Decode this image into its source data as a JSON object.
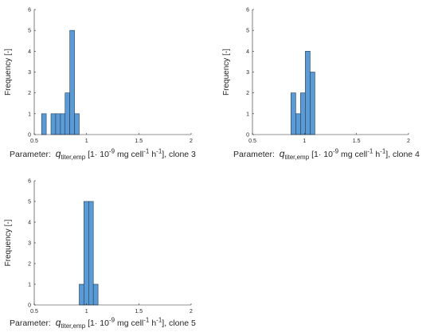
{
  "figure": {
    "bar_color": "#5b9bd5",
    "bar_edge": "#1f3b57",
    "axis_color": "#262626"
  },
  "chart_data": [
    {
      "type": "bar",
      "subtype": "histogram",
      "ylabel": "Frequency [-]",
      "xlabel": {
        "prefix": "Parameter:",
        "symbol": "q",
        "subscript": "titer,emp",
        "unit_open": "[1·",
        "unit_ten": "10",
        "unit_exp1": "-9",
        "unit_mid": "mg cell",
        "unit_exp2": "-1",
        "unit_h": "h",
        "unit_exp3": "-1",
        "suffix": "], clone 3"
      },
      "xlim": [
        0.5,
        2
      ],
      "ylim": [
        0,
        6
      ],
      "xticks": [
        "0.5",
        "1",
        "1.5",
        "2"
      ],
      "yticks": [
        "0",
        "1",
        "2",
        "3",
        "4",
        "5",
        "6"
      ],
      "bin_width": 0.045,
      "bins": [
        {
          "x": 0.57,
          "count": 1
        },
        {
          "x": 0.66,
          "count": 1
        },
        {
          "x": 0.705,
          "count": 1
        },
        {
          "x": 0.75,
          "count": 1
        },
        {
          "x": 0.795,
          "count": 2
        },
        {
          "x": 0.84,
          "count": 5
        },
        {
          "x": 0.885,
          "count": 1
        }
      ]
    },
    {
      "type": "bar",
      "subtype": "histogram",
      "ylabel": "Frequency [-]",
      "xlabel": {
        "prefix": "Parameter:",
        "symbol": "q",
        "subscript": "titer,emp",
        "unit_open": "[1·",
        "unit_ten": "10",
        "unit_exp1": "-9",
        "unit_mid": "mg cell",
        "unit_exp2": "-1",
        "unit_h": "h",
        "unit_exp3": "-1",
        "suffix": "], clone 4"
      },
      "xlim": [
        0.5,
        2
      ],
      "ylim": [
        0,
        6
      ],
      "xticks": [
        "0.5",
        "1",
        "1.5",
        "2"
      ],
      "yticks": [
        "0",
        "1",
        "2",
        "3",
        "4",
        "5",
        "6"
      ],
      "bin_width": 0.046,
      "bins": [
        {
          "x": 0.87,
          "count": 2
        },
        {
          "x": 0.916,
          "count": 1
        },
        {
          "x": 0.962,
          "count": 2
        },
        {
          "x": 1.008,
          "count": 4
        },
        {
          "x": 1.054,
          "count": 3
        }
      ]
    },
    {
      "type": "bar",
      "subtype": "histogram",
      "ylabel": "Frequency [-]",
      "xlabel": {
        "prefix": "Parameter:",
        "symbol": "q",
        "subscript": "titer,emp",
        "unit_open": "[1·",
        "unit_ten": "10",
        "unit_exp1": "-9",
        "unit_mid": "mg cell",
        "unit_exp2": "-1",
        "unit_h": "h",
        "unit_exp3": "-1",
        "suffix": "], clone 5"
      },
      "xlim": [
        0.5,
        2
      ],
      "ylim": [
        0,
        6
      ],
      "xticks": [
        "0.5",
        "1",
        "1.5",
        "2"
      ],
      "yticks": [
        "0",
        "1",
        "2",
        "3",
        "4",
        "5",
        "6"
      ],
      "bin_width": 0.045,
      "bins": [
        {
          "x": 0.93,
          "count": 1
        },
        {
          "x": 0.975,
          "count": 5
        },
        {
          "x": 1.02,
          "count": 5
        },
        {
          "x": 1.065,
          "count": 1
        }
      ]
    }
  ]
}
